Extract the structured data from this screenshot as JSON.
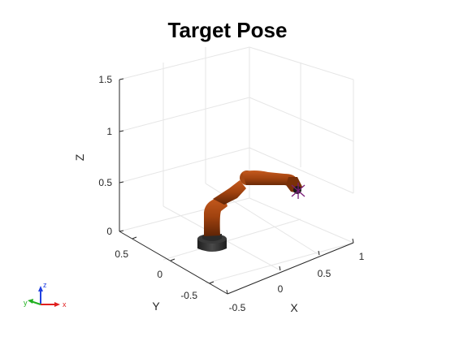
{
  "figure": {
    "title": "Target Pose",
    "axes": {
      "x": {
        "label": "X",
        "ticks": [
          "-0.5",
          "0",
          "0.5",
          "1"
        ]
      },
      "y": {
        "label": "Y",
        "ticks": [
          "0.5",
          "0",
          "-0.5"
        ]
      },
      "z": {
        "label": "Z",
        "ticks": [
          "0",
          "0.5",
          "1",
          "1.5"
        ]
      }
    },
    "triad": {
      "x": "x",
      "y": "y",
      "z": "z"
    }
  },
  "colors": {
    "grid": "#e6e6e6",
    "axis": "#262626",
    "robot_link": "#a0420f",
    "robot_link_dark": "#6b2a08",
    "robot_base": "#2b2b2b",
    "target_marker": "#7a1e78",
    "triad_x": "#e02020",
    "triad_y": "#20b020",
    "triad_z": "#2040e0"
  }
}
